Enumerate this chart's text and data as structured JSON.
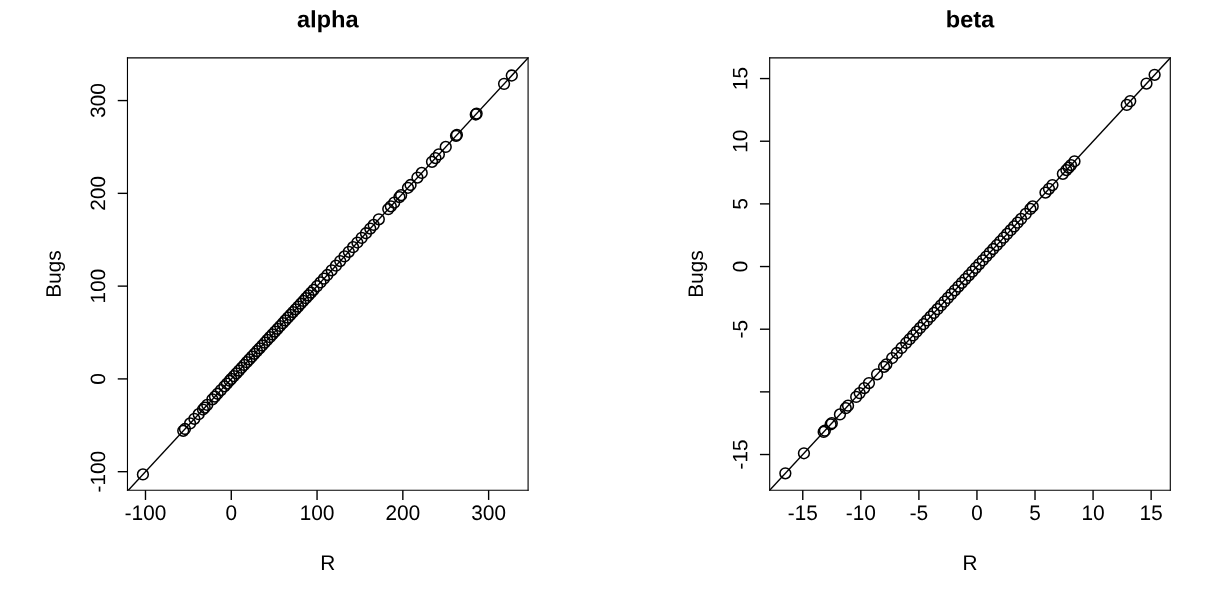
{
  "chart_data": [
    {
      "type": "scatter",
      "title": "alpha",
      "xlabel": "R",
      "ylabel": "Bugs",
      "grid": false,
      "xlim": [
        -121,
        346
      ],
      "ylim": [
        -120,
        346
      ],
      "xticks": [
        -100,
        0,
        100,
        200,
        300
      ],
      "yticks": [
        -100,
        0,
        100,
        200,
        300
      ],
      "series": [
        {
          "color": "#000000",
          "marker": "circle",
          "x": [
            -103,
            -56,
            -54,
            -48,
            -43,
            -38,
            -33,
            -31,
            -28,
            -22,
            -19,
            -16,
            -12,
            -8,
            -5,
            -2,
            0,
            3,
            6,
            9,
            12,
            15,
            18,
            21,
            24,
            27,
            30,
            33,
            36,
            39,
            42,
            45,
            48,
            51,
            54,
            57,
            60,
            63,
            66,
            69,
            72,
            75,
            78,
            81,
            84,
            87,
            90,
            93,
            96,
            100,
            104,
            108,
            112,
            117,
            122,
            127,
            132,
            137,
            142,
            147,
            152,
            157,
            162,
            166,
            172,
            183,
            186,
            190,
            196,
            198,
            206,
            209,
            217,
            222,
            234,
            238,
            242,
            250,
            262,
            263,
            285,
            286,
            318,
            327
          ],
          "values": [
            -103,
            -56,
            -54,
            -48,
            -43,
            -38,
            -33,
            -31,
            -28,
            -22,
            -19,
            -16,
            -12,
            -8,
            -5,
            -2,
            0,
            3,
            6,
            9,
            12,
            15,
            18,
            21,
            24,
            27,
            30,
            33,
            36,
            39,
            42,
            45,
            48,
            51,
            54,
            57,
            60,
            63,
            66,
            69,
            72,
            75,
            78,
            81,
            84,
            87,
            90,
            93,
            96,
            100,
            104,
            108,
            112,
            117,
            122,
            127,
            132,
            137,
            142,
            147,
            152,
            157,
            162,
            166,
            172,
            183,
            186,
            190,
            196,
            198,
            206,
            209,
            217,
            222,
            234,
            238,
            242,
            250,
            262,
            263,
            285,
            286,
            318,
            327
          ]
        },
        {
          "type": "line",
          "color": "#000000",
          "marker": "none",
          "x": [
            -120,
            346
          ],
          "values": [
            -120,
            346
          ]
        }
      ]
    },
    {
      "type": "scatter",
      "title": "beta",
      "xlabel": "R",
      "ylabel": "Bugs",
      "grid": false,
      "xlim": [
        -17.85,
        16.65
      ],
      "ylim": [
        -17.85,
        16.65
      ],
      "xticks": [
        -15,
        -10,
        -5,
        0,
        5,
        10,
        15
      ],
      "yticks": [
        {
          "value": -15,
          "label": "-15"
        },
        {
          "value": -10,
          "label": null
        },
        -5,
        0,
        5,
        10,
        15
      ],
      "series": [
        {
          "color": "#000000",
          "marker": "circle",
          "x": [
            -16.5,
            -14.9,
            -13.2,
            -13.1,
            -12.6,
            -12.5,
            -11.8,
            -11.3,
            -11.1,
            -10.4,
            -10.1,
            -9.7,
            -9.3,
            -8.6,
            -8.0,
            -7.8,
            -7.3,
            -6.9,
            -6.5,
            -6.1,
            -5.8,
            -5.5,
            -5.2,
            -4.9,
            -4.6,
            -4.3,
            -4.0,
            -3.7,
            -3.4,
            -3.1,
            -2.8,
            -2.5,
            -2.2,
            -1.9,
            -1.6,
            -1.3,
            -1.0,
            -0.7,
            -0.4,
            -0.1,
            0.2,
            0.5,
            0.8,
            1.1,
            1.4,
            1.7,
            2.0,
            2.3,
            2.6,
            2.9,
            3.2,
            3.5,
            3.8,
            4.2,
            4.6,
            4.8,
            5.9,
            6.2,
            6.5,
            7.4,
            7.7,
            7.9,
            8.1,
            8.4,
            12.9,
            13.2,
            14.6,
            15.3
          ],
          "values": [
            -16.5,
            -14.9,
            -13.2,
            -13.1,
            -12.6,
            -12.5,
            -11.8,
            -11.3,
            -11.1,
            -10.4,
            -10.1,
            -9.7,
            -9.3,
            -8.6,
            -8.0,
            -7.8,
            -7.3,
            -6.9,
            -6.5,
            -6.1,
            -5.8,
            -5.5,
            -5.2,
            -4.9,
            -4.6,
            -4.3,
            -4.0,
            -3.7,
            -3.4,
            -3.1,
            -2.8,
            -2.5,
            -2.2,
            -1.9,
            -1.6,
            -1.3,
            -1.0,
            -0.7,
            -0.4,
            -0.1,
            0.2,
            0.5,
            0.8,
            1.1,
            1.4,
            1.7,
            2.0,
            2.3,
            2.6,
            2.9,
            3.2,
            3.5,
            3.8,
            4.2,
            4.6,
            4.8,
            5.9,
            6.2,
            6.5,
            7.4,
            7.7,
            7.9,
            8.1,
            8.4,
            12.9,
            13.2,
            14.6,
            15.3
          ]
        },
        {
          "type": "line",
          "color": "#000000",
          "marker": "none",
          "x": [
            -17.85,
            16.65
          ],
          "values": [
            -17.85,
            16.65
          ]
        }
      ]
    }
  ]
}
